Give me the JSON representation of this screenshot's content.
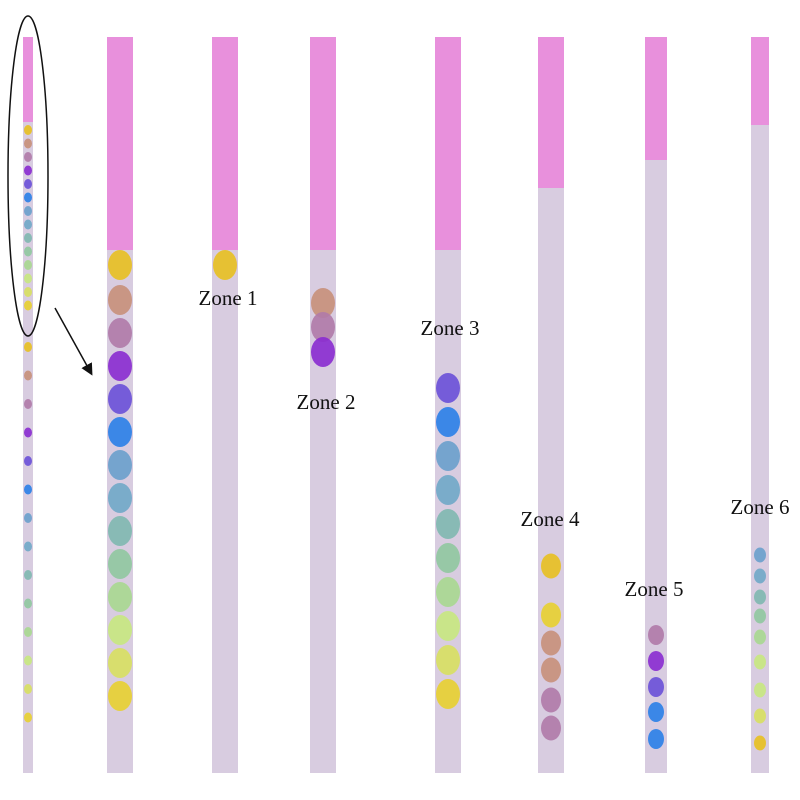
{
  "zones": [
    {
      "label": "Zone 1"
    },
    {
      "label": "Zone 2"
    },
    {
      "label": "Zone 3"
    },
    {
      "label": "Zone 4"
    },
    {
      "label": "Zone 5"
    },
    {
      "label": "Zone 6"
    }
  ]
}
